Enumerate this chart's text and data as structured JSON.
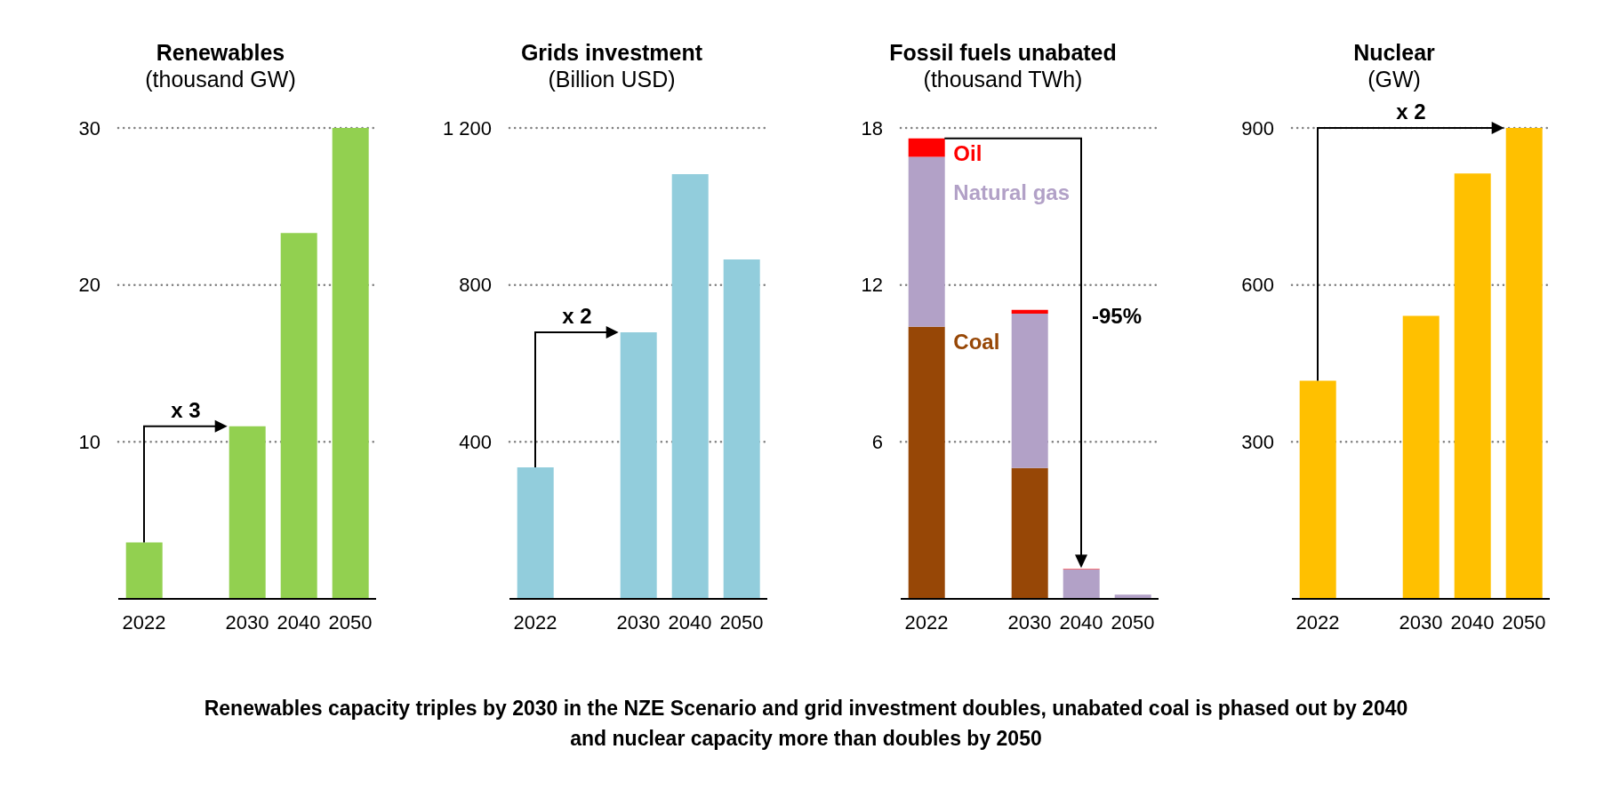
{
  "chart_data": [
    {
      "type": "bar",
      "title": "Renewables",
      "subtitle": "(thousand GW)",
      "categories": [
        "2022",
        null,
        "2030",
        "2040",
        "2050"
      ],
      "values": [
        3.6,
        null,
        11.0,
        23.3,
        30
      ],
      "color": "#92d050",
      "ylim": [
        0,
        30
      ],
      "yticks": [
        10,
        20,
        30
      ],
      "grid": "y",
      "annotations": [
        {
          "text": "x 3",
          "x": "2030",
          "y": 11.0
        }
      ]
    },
    {
      "type": "bar",
      "title": "Grids investment",
      "subtitle": "(Billion USD)",
      "categories": [
        "2022",
        null,
        "2030",
        "2040",
        "2050"
      ],
      "values": [
        335,
        null,
        679,
        1082,
        865
      ],
      "color": "#92cddc",
      "ylim": [
        0,
        1200
      ],
      "yticks": [
        400,
        800,
        {
          "value": 1200,
          "label": "1 200"
        }
      ],
      "grid": "y",
      "annotations": [
        {
          "text": "x 2",
          "x": "2030",
          "y": 679
        }
      ]
    },
    {
      "type": "bar",
      "title": "Fossil fuels unabated",
      "subtitle": "(thousand TWh)",
      "categories": [
        "2022",
        null,
        "2030",
        "2040",
        "2050"
      ],
      "stacked": true,
      "series": [
        {
          "name": "Coal",
          "color": "#974706",
          "values": [
            10.4,
            null,
            5.0,
            0,
            0
          ]
        },
        {
          "name": "Natural gas",
          "color": "#b2a1c7",
          "values": [
            6.5,
            null,
            5.9,
            1.13,
            0.16
          ]
        },
        {
          "name": "Oil",
          "color": "#ff0000",
          "values": [
            0.7,
            null,
            0.15,
            0.02,
            null
          ]
        }
      ],
      "ylim": [
        0,
        18
      ],
      "yticks": [
        6,
        12,
        18
      ],
      "grid": "y",
      "annotations": [
        "-95%"
      ]
    },
    {
      "type": "bar",
      "title": "Nuclear",
      "subtitle": "(GW)",
      "categories": [
        "2022",
        null,
        "2030",
        "2040",
        "2050"
      ],
      "values": [
        417,
        null,
        541,
        813,
        900
      ],
      "color": "#ffc000",
      "ylim": [
        0,
        900
      ],
      "yticks": [
        300,
        600,
        900
      ],
      "grid": "y",
      "annotations": [
        "x 2",
        "Renewables capacity triples by 2030 in the NZE Scenario and grid investment doubles, unabated coal is phased out by 2040 and nuclear capacity more than doubles by 2050"
      ]
    }
  ]
}
